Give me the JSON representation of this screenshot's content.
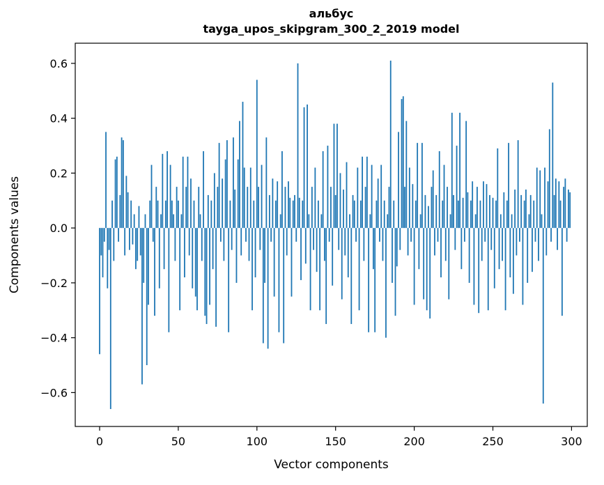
{
  "figure": {
    "title_line1": "альбус",
    "title_line2": "tayga_upos_skipgram_300_2_2019 model",
    "xlabel": "Vector components",
    "ylabel": "Components values",
    "background": "#ffffff",
    "bar_color": "#1f77b4"
  },
  "chart_data": {
    "type": "bar",
    "title": "альбус\ntayga_upos_skipgram_300_2_2019 model",
    "xlabel": "Vector components",
    "ylabel": "Components values",
    "bar_color": "#1f77b4",
    "grid": false,
    "legend": "none",
    "xlim": [
      -15.5,
      310
    ],
    "ylim": [
      -0.7235,
      0.6735
    ],
    "x_ticks": [
      0,
      50,
      100,
      150,
      200,
      250,
      300
    ],
    "y_ticks": [
      0.6,
      0.4,
      0.2,
      0.0,
      -0.2,
      -0.4,
      -0.6
    ],
    "x_start": 0,
    "values": [
      -0.46,
      -0.1,
      -0.18,
      -0.05,
      0.35,
      -0.22,
      -0.08,
      -0.66,
      0.1,
      -0.12,
      0.25,
      0.26,
      -0.05,
      0.12,
      0.33,
      0.32,
      -0.1,
      0.19,
      0.13,
      -0.08,
      0.1,
      -0.06,
      0.05,
      -0.15,
      -0.12,
      0.08,
      -0.1,
      -0.57,
      -0.2,
      0.05,
      -0.5,
      -0.28,
      0.1,
      0.23,
      -0.05,
      -0.32,
      0.15,
      0.1,
      -0.22,
      0.05,
      0.27,
      -0.15,
      0.1,
      0.28,
      -0.38,
      0.23,
      0.1,
      0.05,
      -0.12,
      0.15,
      0.1,
      -0.3,
      0.05,
      0.26,
      -0.18,
      0.15,
      0.26,
      -0.1,
      0.18,
      -0.22,
      0.1,
      -0.25,
      -0.3,
      0.15,
      0.05,
      -0.12,
      0.28,
      -0.32,
      -0.35,
      0.12,
      -0.28,
      0.1,
      -0.15,
      0.2,
      -0.36,
      0.15,
      0.31,
      -0.05,
      0.18,
      -0.12,
      0.25,
      0.32,
      -0.38,
      0.1,
      -0.08,
      0.33,
      0.14,
      -0.2,
      0.25,
      0.39,
      -0.1,
      0.46,
      0.22,
      -0.05,
      0.15,
      -0.12,
      0.22,
      -0.3,
      0.1,
      -0.18,
      0.54,
      0.15,
      -0.08,
      0.23,
      -0.42,
      -0.2,
      0.33,
      -0.44,
      0.12,
      -0.05,
      0.18,
      -0.25,
      0.1,
      0.17,
      -0.38,
      0.05,
      0.28,
      -0.42,
      0.15,
      -0.1,
      0.17,
      0.11,
      -0.25,
      0.1,
      0.12,
      -0.05,
      0.6,
      0.11,
      -0.19,
      0.1,
      0.44,
      -0.13,
      0.45,
      0.05,
      -0.3,
      0.15,
      -0.08,
      0.22,
      -0.16,
      0.1,
      -0.3,
      0.05,
      0.28,
      -0.12,
      -0.35,
      0.3,
      -0.05,
      0.15,
      -0.21,
      0.38,
      0.12,
      0.38,
      -0.08,
      0.2,
      -0.26,
      0.14,
      -0.1,
      0.24,
      -0.18,
      0.05,
      -0.35,
      0.12,
      0.1,
      -0.05,
      0.22,
      -0.3,
      0.1,
      0.26,
      -0.12,
      0.15,
      0.26,
      -0.38,
      0.05,
      0.23,
      -0.15,
      -0.38,
      0.1,
      0.18,
      -0.05,
      0.23,
      -0.12,
      0.1,
      -0.4,
      0.05,
      0.15,
      0.61,
      -0.2,
      0.1,
      -0.32,
      -0.14,
      0.35,
      -0.08,
      0.47,
      0.48,
      0.15,
      0.39,
      -0.1,
      0.22,
      -0.05,
      0.16,
      -0.28,
      0.1,
      0.31,
      -0.15,
      0.05,
      0.31,
      -0.26,
      0.12,
      -0.3,
      0.08,
      -0.33,
      0.15,
      0.21,
      -0.1,
      0.12,
      -0.05,
      0.28,
      -0.18,
      0.1,
      0.23,
      -0.12,
      0.15,
      -0.26,
      0.05,
      0.42,
      0.12,
      -0.08,
      0.3,
      0.1,
      0.42,
      -0.15,
      0.11,
      -0.05,
      0.39,
      0.13,
      -0.2,
      0.1,
      0.17,
      -0.28,
      0.05,
      0.15,
      -0.31,
      0.1,
      -0.12,
      0.17,
      -0.05,
      0.16,
      -0.3,
      0.12,
      -0.08,
      0.11,
      -0.22,
      0.1,
      0.29,
      -0.15,
      0.05,
      -0.12,
      0.13,
      -0.3,
      0.1,
      0.31,
      -0.18,
      0.05,
      -0.24,
      0.14,
      -0.1,
      0.32,
      -0.05,
      0.12,
      -0.28,
      0.1,
      0.14,
      -0.2,
      0.05,
      0.12,
      -0.16,
      0.1,
      -0.05,
      0.22,
      -0.12,
      0.21,
      0.05,
      -0.64,
      0.22,
      -0.1,
      0.17,
      0.36,
      -0.05,
      0.53,
      0.12,
      0.18,
      -0.08,
      0.17,
      0.1,
      -0.32,
      0.15,
      0.18,
      -0.05,
      0.14,
      0.13
    ]
  }
}
